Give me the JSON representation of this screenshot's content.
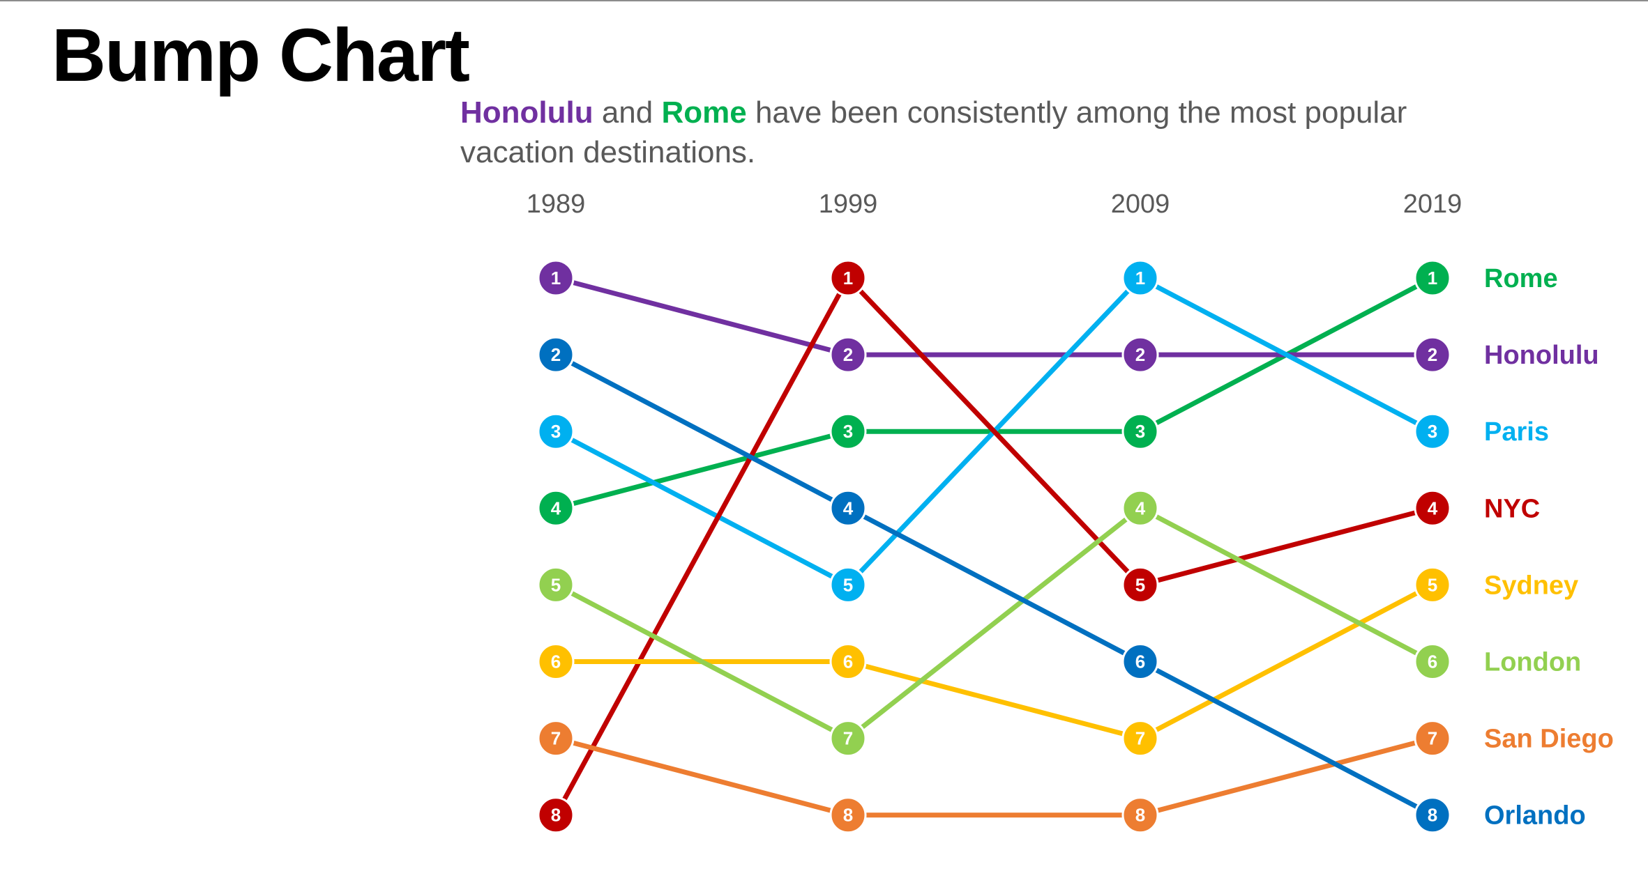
{
  "page": {
    "title": "Bump Chart"
  },
  "subtitle": {
    "city_a": "Honolulu",
    "city_a_color": "#7030a0",
    "connector": " and ",
    "city_b": "Rome",
    "city_b_color": "#00b050",
    "rest": " have been consistently among the most popular vacation destinations."
  },
  "chart_data": {
    "type": "line",
    "subtype": "bump",
    "title": "Bump Chart",
    "subtitle": "Honolulu and Rome have been consistently among the most popular vacation destinations.",
    "x": [
      "1989",
      "1999",
      "2009",
      "2019"
    ],
    "y_axis": "rank",
    "ylim": [
      1,
      8
    ],
    "y_inverted": true,
    "grid": false,
    "legend": "direct labels at right end of each line",
    "series": [
      {
        "name": "Rome",
        "color": "#00b050",
        "values": [
          4,
          3,
          3,
          1
        ]
      },
      {
        "name": "Honolulu",
        "color": "#7030a0",
        "values": [
          1,
          2,
          2,
          2
        ]
      },
      {
        "name": "Paris",
        "color": "#00b0f0",
        "values": [
          3,
          5,
          1,
          3
        ]
      },
      {
        "name": "NYC",
        "color": "#c00000",
        "values": [
          8,
          1,
          5,
          4
        ]
      },
      {
        "name": "Sydney",
        "color": "#ffc000",
        "values": [
          6,
          6,
          7,
          5
        ]
      },
      {
        "name": "London",
        "color": "#92d050",
        "values": [
          5,
          7,
          4,
          6
        ]
      },
      {
        "name": "San Diego",
        "color": "#ed7d31",
        "values": [
          7,
          8,
          8,
          7
        ]
      },
      {
        "name": "Orlando",
        "color": "#0070c0",
        "values": [
          2,
          4,
          6,
          8
        ]
      }
    ]
  }
}
